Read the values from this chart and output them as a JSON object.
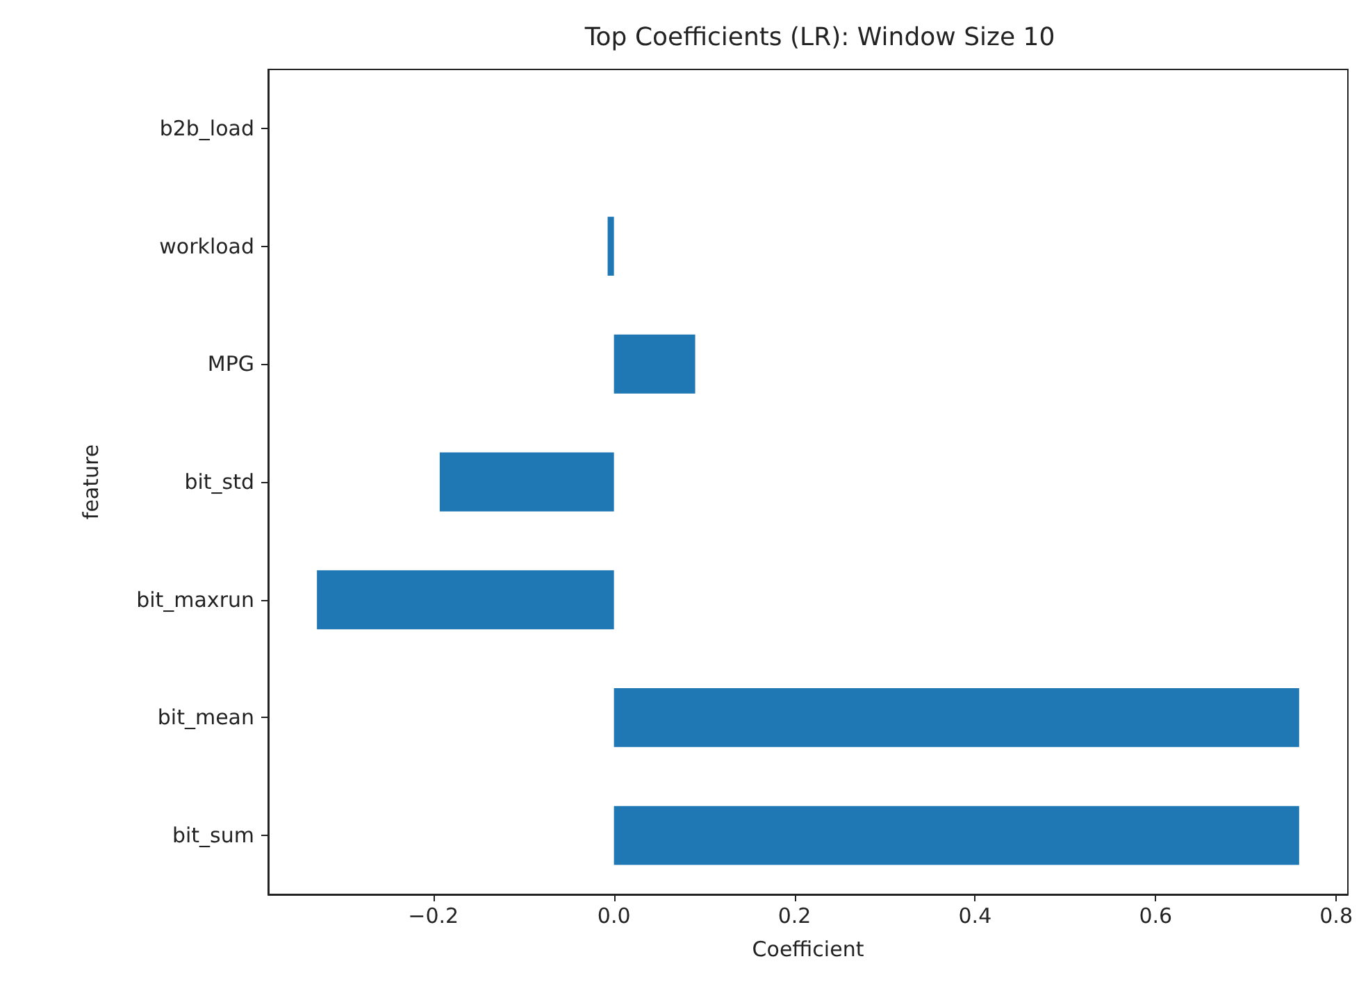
{
  "chart_data": {
    "type": "bar",
    "orientation": "horizontal",
    "title": "Top Coefficients (LR): Window Size 10",
    "xlabel": "Coefficient",
    "ylabel": "feature",
    "categories": [
      "b2b_load",
      "workload",
      "MPG",
      "bit_std",
      "bit_maxrun",
      "bit_mean",
      "bit_sum"
    ],
    "values": [
      0,
      -0.007,
      0.09,
      -0.193,
      -0.329,
      0.759,
      0.759
    ],
    "color": "#1f77b4",
    "xlim": [
      -0.383,
      0.813
    ],
    "xticks": [
      {
        "value": -0.2,
        "label": "−0.2"
      },
      {
        "value": 0,
        "label": "0.0"
      },
      {
        "value": 0.2,
        "label": "0.2"
      },
      {
        "value": 0.4,
        "label": "0.4"
      },
      {
        "value": 0.6,
        "label": "0.6"
      },
      {
        "value": 0.8,
        "label": "0.8"
      }
    ],
    "data_labels": false
  }
}
